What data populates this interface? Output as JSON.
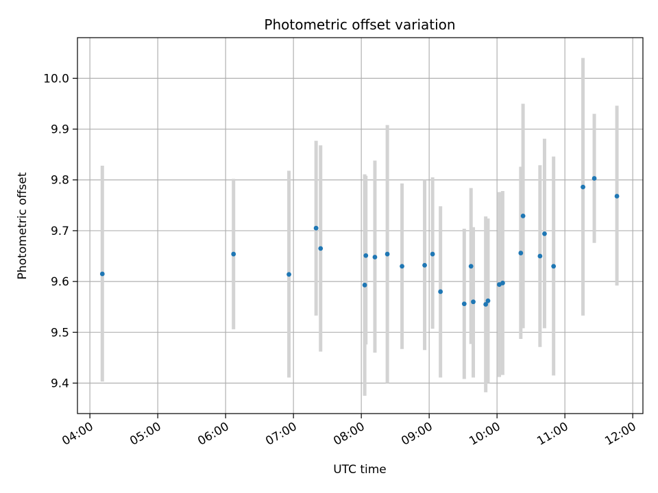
{
  "chart_data": {
    "type": "scatter",
    "title": "Photometric offset variation",
    "xlabel": "UTC time",
    "ylabel": "Photometric offset",
    "x_ticks": [
      "04:00",
      "05:00",
      "06:00",
      "07:00",
      "08:00",
      "09:00",
      "10:00",
      "11:00",
      "12:00"
    ],
    "y_ticks": [
      "9.4",
      "9.5",
      "9.6",
      "9.7",
      "9.8",
      "9.9",
      "10.0"
    ],
    "xlim": [
      "03:49",
      "12:09"
    ],
    "ylim": [
      9.34,
      10.08
    ],
    "grid": true,
    "point_color": "#1f77b4",
    "errorbar_color": "#d3d3d3",
    "points": [
      {
        "x": "04:11",
        "y": 9.615,
        "low": 9.403,
        "high": 9.828
      },
      {
        "x": "06:07",
        "y": 9.654,
        "low": 9.506,
        "high": 9.802
      },
      {
        "x": "06:56",
        "y": 9.614,
        "low": 9.411,
        "high": 9.818
      },
      {
        "x": "07:20",
        "y": 9.705,
        "low": 9.533,
        "high": 9.877
      },
      {
        "x": "07:24",
        "y": 9.665,
        "low": 9.462,
        "high": 9.868
      },
      {
        "x": "08:03",
        "y": 9.593,
        "low": 9.375,
        "high": 9.811
      },
      {
        "x": "08:04",
        "y": 9.651,
        "low": 9.476,
        "high": 9.808
      },
      {
        "x": "08:12",
        "y": 9.648,
        "low": 9.46,
        "high": 9.838
      },
      {
        "x": "08:23",
        "y": 9.654,
        "low": 9.4,
        "high": 9.908
      },
      {
        "x": "08:36",
        "y": 9.63,
        "low": 9.467,
        "high": 9.793
      },
      {
        "x": "08:56",
        "y": 9.632,
        "low": 9.465,
        "high": 9.8
      },
      {
        "x": "09:03",
        "y": 9.654,
        "low": 9.507,
        "high": 9.805
      },
      {
        "x": "09:10",
        "y": 9.58,
        "low": 9.411,
        "high": 9.748
      },
      {
        "x": "09:31",
        "y": 9.556,
        "low": 9.408,
        "high": 9.704
      },
      {
        "x": "09:37",
        "y": 9.63,
        "low": 9.477,
        "high": 9.784
      },
      {
        "x": "09:39",
        "y": 9.56,
        "low": 9.411,
        "high": 9.707
      },
      {
        "x": "09:50",
        "y": 9.555,
        "low": 9.382,
        "high": 9.728
      },
      {
        "x": "09:52",
        "y": 9.562,
        "low": 9.4,
        "high": 9.724
      },
      {
        "x": "10:02",
        "y": 9.594,
        "low": 9.412,
        "high": 9.776
      },
      {
        "x": "10:05",
        "y": 9.597,
        "low": 9.416,
        "high": 9.778
      },
      {
        "x": "10:21",
        "y": 9.656,
        "low": 9.487,
        "high": 9.826
      },
      {
        "x": "10:23",
        "y": 9.729,
        "low": 9.508,
        "high": 9.95
      },
      {
        "x": "10:38",
        "y": 9.65,
        "low": 9.471,
        "high": 9.829
      },
      {
        "x": "10:42",
        "y": 9.694,
        "low": 9.508,
        "high": 9.881
      },
      {
        "x": "10:50",
        "y": 9.63,
        "low": 9.415,
        "high": 9.846
      },
      {
        "x": "11:16",
        "y": 9.786,
        "low": 9.533,
        "high": 10.04
      },
      {
        "x": "11:26",
        "y": 9.803,
        "low": 9.676,
        "high": 9.93
      },
      {
        "x": "11:46",
        "y": 9.768,
        "low": 9.592,
        "high": 9.946
      }
    ]
  }
}
